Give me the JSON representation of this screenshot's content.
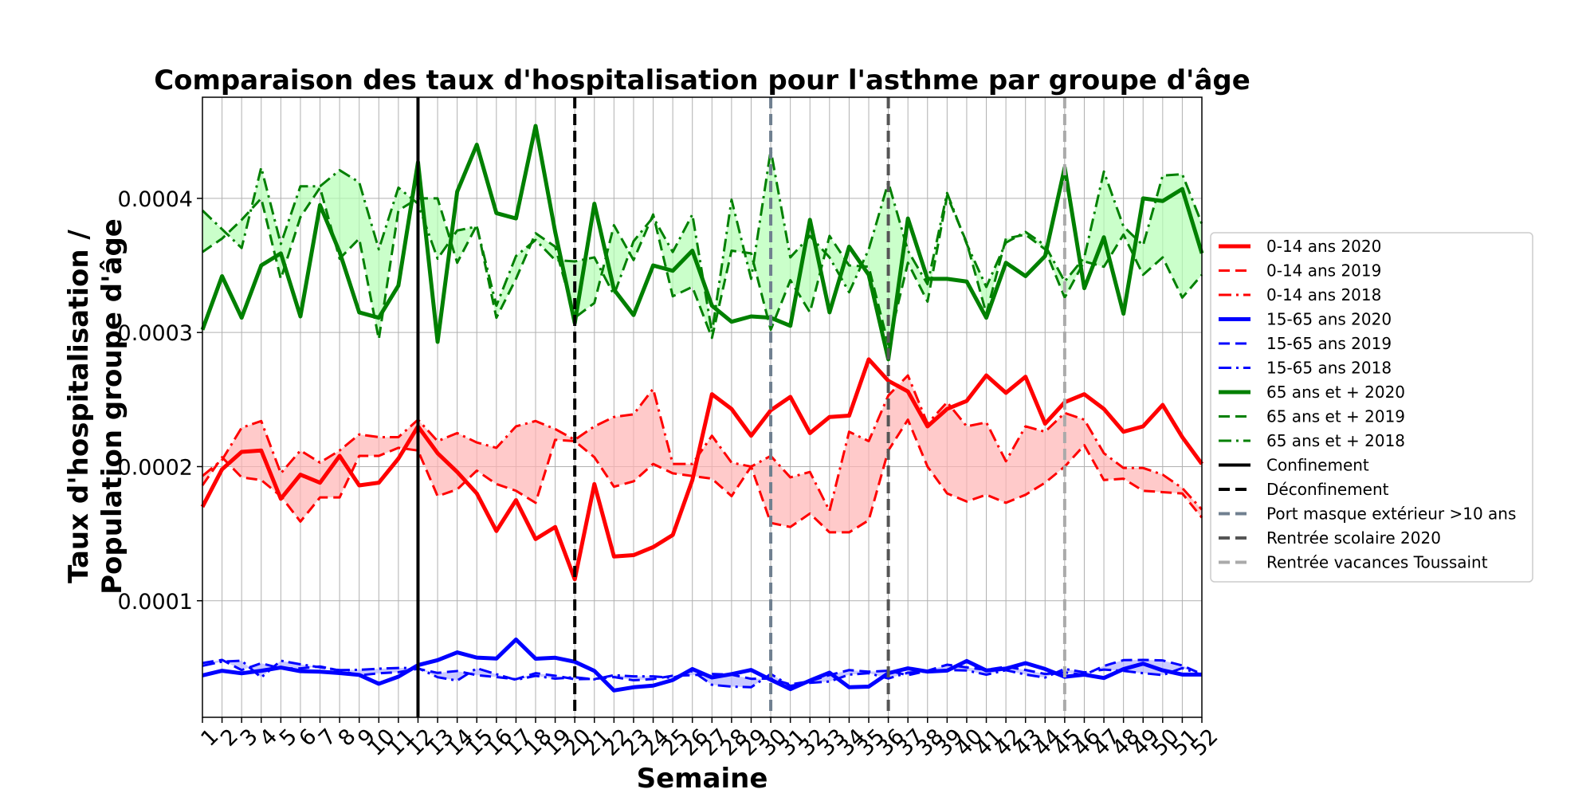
{
  "chart_data": {
    "type": "line",
    "title": "Comparaison des taux d'hospitalisation pour l'asthme par groupe d'âge",
    "xlabel": "Semaine",
    "ylabel_lines": [
      "Taux d'hospitalisation /",
      "Population groupe d'âge"
    ],
    "xlim": [
      1,
      52
    ],
    "ylim": [
      1.31e-05,
      0.0004754
    ],
    "x": [
      1,
      2,
      3,
      4,
      5,
      6,
      7,
      8,
      9,
      10,
      11,
      12,
      13,
      14,
      15,
      16,
      17,
      18,
      19,
      20,
      21,
      22,
      23,
      24,
      25,
      26,
      27,
      28,
      29,
      30,
      31,
      32,
      33,
      34,
      35,
      36,
      37,
      38,
      39,
      40,
      41,
      42,
      43,
      44,
      45,
      46,
      47,
      48,
      49,
      50,
      51,
      52
    ],
    "x_tick_labels": [
      "1",
      "2",
      "3",
      "4",
      "5",
      "6",
      "7",
      "8",
      "9",
      "10",
      "11",
      "12",
      "13",
      "14",
      "15",
      "16",
      "17",
      "18",
      "19",
      "20",
      "21",
      "22",
      "23",
      "24",
      "25",
      "26",
      "27",
      "28",
      "29",
      "30",
      "31",
      "32",
      "33",
      "34",
      "35",
      "36",
      "37",
      "38",
      "39",
      "40",
      "41",
      "42",
      "43",
      "44",
      "45",
      "46",
      "47",
      "48",
      "49",
      "50",
      "51",
      "52"
    ],
    "y_ticks": [
      {
        "value": 0.0001,
        "label": "0.0001"
      },
      {
        "value": 0.0002,
        "label": "0.0002"
      },
      {
        "value": 0.0003,
        "label": "0.0003"
      },
      {
        "value": 0.0004,
        "label": "0.0004"
      }
    ],
    "grid": true,
    "series": [
      {
        "name": "0-14 ans 2020",
        "color": "#ff0000",
        "dash": "solid",
        "width": 5,
        "values": [
          0.00017,
          0.000198,
          0.000211,
          0.000212,
          0.000176,
          0.000194,
          0.000188,
          0.000208,
          0.000186,
          0.000188,
          0.000206,
          0.00023,
          0.00021,
          0.000196,
          0.00018,
          0.000152,
          0.000175,
          0.000146,
          0.000155,
          0.000116,
          0.000187,
          0.000133,
          0.000134,
          0.00014,
          0.000149,
          0.00019,
          0.000254,
          0.000243,
          0.000223,
          0.000242,
          0.000252,
          0.000225,
          0.000237,
          0.000238,
          0.00028,
          0.000264,
          0.000256,
          0.00023,
          0.000243,
          0.000249,
          0.000268,
          0.000255,
          0.000267,
          0.000232,
          0.000248,
          0.000254,
          0.000243,
          0.000226,
          0.00023,
          0.000246,
          0.000222,
          0.000202
        ]
      },
      {
        "name": "0-14 ans 2019",
        "color": "#ff0000",
        "dash": "dashed",
        "width": 3,
        "values": [
          0.000186,
          0.000207,
          0.000192,
          0.00019,
          0.000178,
          0.000159,
          0.000177,
          0.000177,
          0.000208,
          0.000208,
          0.000214,
          0.000212,
          0.000178,
          0.000183,
          0.000197,
          0.000187,
          0.000182,
          0.000173,
          0.00022,
          0.000219,
          0.000207,
          0.000185,
          0.000189,
          0.000202,
          0.000195,
          0.000193,
          0.000191,
          0.000178,
          0.0002,
          0.000158,
          0.000155,
          0.000165,
          0.000151,
          0.000151,
          0.00016,
          0.000212,
          0.000235,
          0.0002,
          0.00018,
          0.000174,
          0.000179,
          0.000173,
          0.000179,
          0.000188,
          0.0002,
          0.000216,
          0.00019,
          0.000191,
          0.000182,
          0.000181,
          0.00018,
          0.000162
        ]
      },
      {
        "name": "0-14 ans 2018",
        "color": "#ff0000",
        "dash": "dashdot",
        "width": 3,
        "values": [
          0.000193,
          0.000205,
          0.000229,
          0.000234,
          0.000195,
          0.000212,
          0.000203,
          0.000212,
          0.000224,
          0.000222,
          0.000222,
          0.000235,
          0.000219,
          0.000225,
          0.000218,
          0.000214,
          0.00023,
          0.000234,
          0.000228,
          0.00022,
          0.00023,
          0.000237,
          0.000239,
          0.000258,
          0.000202,
          0.000202,
          0.000223,
          0.000203,
          0.0002,
          0.000208,
          0.000192,
          0.000196,
          0.000167,
          0.000226,
          0.000219,
          0.000253,
          0.000268,
          0.000232,
          0.000248,
          0.00023,
          0.000233,
          0.000204,
          0.00023,
          0.000226,
          0.00024,
          0.000235,
          0.00021,
          0.000199,
          0.000199,
          0.000194,
          0.000184,
          0.000168
        ]
      },
      {
        "name": "15-65 ans 2020",
        "color": "#0000ff",
        "dash": "solid",
        "width": 5,
        "values": [
          4.43e-05,
          4.78e-05,
          4.59e-05,
          4.78e-05,
          5.02e-05,
          4.75e-05,
          4.71e-05,
          4.61e-05,
          4.47e-05,
          3.81e-05,
          4.34e-05,
          5.2e-05,
          5.57e-05,
          6.15e-05,
          5.76e-05,
          5.69e-05,
          7.11e-05,
          5.68e-05,
          5.75e-05,
          5.45e-05,
          4.77e-05,
          3.31e-05,
          3.55e-05,
          3.67e-05,
          4.09e-05,
          4.91e-05,
          4.28e-05,
          4.53e-05,
          4.84e-05,
          4.11e-05,
          3.41e-05,
          4.05e-05,
          4.64e-05,
          3.55e-05,
          3.6e-05,
          4.6e-05,
          4.96e-05,
          4.72e-05,
          4.79e-05,
          5.51e-05,
          4.8e-05,
          4.94e-05,
          5.35e-05,
          4.91e-05,
          4.33e-05,
          4.49e-05,
          4.24e-05,
          4.9e-05,
          5.31e-05,
          4.81e-05,
          4.5e-05,
          4.5e-05
        ]
      },
      {
        "name": "15-65 ans 2019",
        "color": "#0000ff",
        "dash": "dashed",
        "width": 3,
        "values": [
          5.36e-05,
          5.59e-05,
          4.83e-05,
          5.34e-05,
          4.96e-05,
          4.96e-05,
          5.1e-05,
          4.8e-05,
          4.44e-05,
          4.59e-05,
          4.67e-05,
          4.93e-05,
          4.62e-05,
          4.76e-05,
          4.45e-05,
          4.31e-05,
          4.15e-05,
          4.6e-05,
          4.41e-05,
          4.15e-05,
          4.18e-05,
          4.31e-05,
          4.07e-05,
          4.16e-05,
          4.41e-05,
          4.45e-05,
          4.54e-05,
          4.49e-05,
          4.18e-05,
          4.2e-05,
          3.76e-05,
          4e-05,
          4.46e-05,
          4.83e-05,
          4.71e-05,
          4.78e-05,
          4.45e-05,
          4.78e-05,
          5.23e-05,
          5.03e-05,
          4.85e-05,
          5.08e-05,
          4.84e-05,
          4.54e-05,
          4.66e-05,
          4.47e-05,
          5.14e-05,
          5.57e-05,
          5.59e-05,
          5.55e-05,
          5.17e-05,
          4.53e-05
        ]
      },
      {
        "name": "15-65 ans 2018",
        "color": "#0000ff",
        "dash": "dashdot",
        "width": 3,
        "values": [
          5.15e-05,
          5.46e-05,
          5.53e-05,
          4.28e-05,
          5.53e-05,
          5.26e-05,
          5.04e-05,
          4.83e-05,
          4.85e-05,
          4.93e-05,
          4.99e-05,
          4.98e-05,
          4.3e-05,
          4.05e-05,
          4.97e-05,
          4.52e-05,
          4.1e-05,
          4.4e-05,
          4.19e-05,
          4.3e-05,
          4.14e-05,
          4.45e-05,
          4.36e-05,
          4.36e-05,
          4.25e-05,
          4.76e-05,
          3.73e-05,
          3.6e-05,
          3.55e-05,
          4.54e-05,
          3.65e-05,
          3.88e-05,
          3.98e-05,
          4.49e-05,
          4.6e-05,
          4.2e-05,
          4.64e-05,
          4.73e-05,
          4.84e-05,
          4.8e-05,
          4.49e-05,
          4.82e-05,
          4.5e-05,
          4.27e-05,
          4.92e-05,
          4.66e-05,
          4.87e-05,
          4.77e-05,
          4.6e-05,
          4.46e-05,
          4.98e-05,
          4.46e-05
        ]
      },
      {
        "name": "65 ans et + 2020",
        "color": "#008000",
        "dash": "solid",
        "width": 5,
        "values": [
          0.000302,
          0.000342,
          0.000311,
          0.00035,
          0.000359,
          0.000312,
          0.000395,
          0.00036,
          0.000315,
          0.000311,
          0.000335,
          0.000427,
          0.000293,
          0.000405,
          0.00044,
          0.000389,
          0.000385,
          0.000454,
          0.000375,
          0.000307,
          0.000396,
          0.000332,
          0.000313,
          0.00035,
          0.000346,
          0.000361,
          0.00032,
          0.000308,
          0.000312,
          0.000311,
          0.000305,
          0.000384,
          0.000315,
          0.000364,
          0.000343,
          0.00028,
          0.000385,
          0.00034,
          0.00034,
          0.000338,
          0.000311,
          0.000352,
          0.000342,
          0.000357,
          0.000423,
          0.000333,
          0.000371,
          0.000314,
          0.0004,
          0.000398,
          0.000407,
          0.000359
        ]
      },
      {
        "name": "65 ans et + 2019",
        "color": "#008000",
        "dash": "dashed",
        "width": 3,
        "values": [
          0.00036,
          0.00037,
          0.000384,
          0.0004,
          0.00034,
          0.000386,
          0.000408,
          0.000355,
          0.00037,
          0.000295,
          0.000391,
          0.0004,
          0.0004,
          0.000352,
          0.00038,
          0.000311,
          0.00034,
          0.000374,
          0.000364,
          0.000311,
          0.000322,
          0.00038,
          0.000354,
          0.000388,
          0.000327,
          0.000334,
          0.000296,
          0.000361,
          0.000359,
          0.000302,
          0.000339,
          0.000315,
          0.000372,
          0.00035,
          0.000349,
          0.000291,
          0.000352,
          0.000323,
          0.000402,
          0.000367,
          0.000314,
          0.00037,
          0.000373,
          0.000362,
          0.000326,
          0.000353,
          0.000349,
          0.000373,
          0.000343,
          0.000356,
          0.000326,
          0.000343
        ]
      },
      {
        "name": "65 ans et + 2018",
        "color": "#008000",
        "dash": "dashdot",
        "width": 3,
        "values": [
          0.000391,
          0.000377,
          0.000363,
          0.000423,
          0.000366,
          0.000409,
          0.000409,
          0.000421,
          0.000412,
          0.000362,
          0.000408,
          0.000396,
          0.000355,
          0.000376,
          0.000379,
          0.00032,
          0.000357,
          0.000369,
          0.000354,
          0.000353,
          0.000356,
          0.000328,
          0.000368,
          0.000386,
          0.00036,
          0.000388,
          0.0003,
          0.000399,
          0.00034,
          0.000436,
          0.000356,
          0.000372,
          0.000356,
          0.00033,
          0.000362,
          0.000412,
          0.000361,
          0.000336,
          0.000404,
          0.000366,
          0.000334,
          0.000367,
          0.000375,
          0.000365,
          0.000338,
          0.000356,
          0.00042,
          0.000379,
          0.000365,
          0.000417,
          0.000418,
          0.000381
        ]
      }
    ],
    "fill_between": [
      {
        "series_a": "0-14 ans 2019",
        "series_b": "0-14 ans 2018",
        "color": "#ffb3b3"
      },
      {
        "series_a": "15-65 ans 2019",
        "series_b": "15-65 ans 2018",
        "color": "#b3b3ff"
      },
      {
        "series_a": "65 ans et + 2019",
        "series_b": "65 ans et + 2018",
        "color": "#b3ffb3"
      }
    ],
    "vertical_lines": [
      {
        "name": "Confinement",
        "x": 12,
        "color": "#000000",
        "dash": "solid",
        "width": 4
      },
      {
        "name": "Déconfinement",
        "x": 20,
        "color": "#000000",
        "dash": "dashed",
        "width": 4
      },
      {
        "name": "Port masque extérieur >10 ans",
        "x": 30,
        "color": "#708090",
        "dash": "dashed",
        "width": 4
      },
      {
        "name": "Rentrée scolaire 2020",
        "x": 36,
        "color": "#555555",
        "dash": "dashed",
        "width": 4
      },
      {
        "name": "Rentrée vacances Toussaint",
        "x": 45,
        "color": "#aaaaaa",
        "dash": "dashed",
        "width": 4
      }
    ],
    "legend_placement": "right, outside plot"
  }
}
